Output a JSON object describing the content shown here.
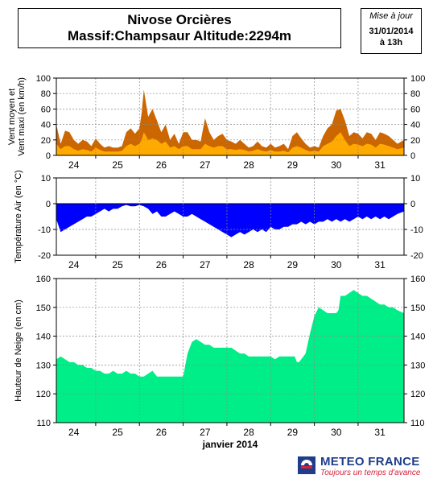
{
  "header": {
    "station_line": "Nivose Orcières",
    "massif_line": "Massif:Champsaur Altitude:2294m"
  },
  "update": {
    "label": "Mise à jour",
    "date": "31/01/2014",
    "time": "à 13h"
  },
  "logo": {
    "name": "METEO FRANCE",
    "tagline": "Toujours un temps d'avance"
  },
  "colors": {
    "wind_max": "#cc6600",
    "wind_mean": "#ffaa00",
    "temperature": "#0000ff",
    "snow": "#00ee88",
    "brand": "#1f3d8c",
    "brand_accent": "#d4213d"
  },
  "chart_data": [
    {
      "type": "area",
      "ylabel": "Vent moyen et\nVent maxi (en km/h)",
      "xlabel": "",
      "ylim": [
        0,
        100
      ],
      "yticks": [
        0,
        20,
        40,
        60,
        80,
        100
      ],
      "x_tick_labels": [
        "24",
        "25",
        "26",
        "27",
        "28",
        "29",
        "30",
        "31"
      ],
      "x_range_days": [
        23.6,
        31.55
      ],
      "grid": true,
      "series": [
        {
          "name": "Vent maxi",
          "x": [
            23.6,
            23.7,
            23.8,
            23.9,
            24.0,
            24.1,
            24.2,
            24.3,
            24.4,
            24.5,
            24.6,
            24.7,
            24.8,
            24.9,
            25.0,
            25.1,
            25.2,
            25.3,
            25.4,
            25.5,
            25.55,
            25.6,
            25.7,
            25.8,
            25.9,
            26.0,
            26.1,
            26.2,
            26.3,
            26.4,
            26.5,
            26.6,
            26.7,
            26.8,
            26.9,
            27.0,
            27.1,
            27.2,
            27.3,
            27.4,
            27.5,
            27.6,
            27.7,
            27.8,
            27.9,
            28.0,
            28.1,
            28.2,
            28.3,
            28.4,
            28.5,
            28.6,
            28.7,
            28.8,
            28.9,
            29.0,
            29.1,
            29.2,
            29.3,
            29.4,
            29.5,
            29.6,
            29.7,
            29.8,
            29.9,
            30.0,
            30.1,
            30.2,
            30.3,
            30.4,
            30.5,
            30.6,
            30.7,
            30.8,
            30.9,
            31.0,
            31.1,
            31.2,
            31.3,
            31.4,
            31.55
          ],
          "values": [
            40,
            15,
            32,
            30,
            20,
            15,
            20,
            18,
            12,
            22,
            15,
            10,
            12,
            10,
            10,
            12,
            30,
            35,
            28,
            35,
            55,
            85,
            50,
            60,
            45,
            30,
            40,
            20,
            28,
            15,
            30,
            30,
            20,
            20,
            18,
            48,
            30,
            20,
            25,
            28,
            20,
            18,
            15,
            20,
            15,
            10,
            12,
            18,
            12,
            10,
            15,
            10,
            12,
            15,
            8,
            25,
            30,
            22,
            15,
            10,
            12,
            10,
            25,
            35,
            40,
            58,
            60,
            45,
            25,
            30,
            28,
            22,
            30,
            28,
            20,
            30,
            28,
            25,
            20,
            15,
            20
          ]
        },
        {
          "name": "Vent moyen",
          "x": [
            23.6,
            23.7,
            23.8,
            23.9,
            24.0,
            24.1,
            24.2,
            24.3,
            24.4,
            24.5,
            24.6,
            24.7,
            24.8,
            24.9,
            25.0,
            25.1,
            25.2,
            25.3,
            25.4,
            25.5,
            25.55,
            25.6,
            25.7,
            25.8,
            25.9,
            26.0,
            26.1,
            26.2,
            26.3,
            26.4,
            26.5,
            26.6,
            26.7,
            26.8,
            26.9,
            27.0,
            27.1,
            27.2,
            27.3,
            27.4,
            27.5,
            27.6,
            27.7,
            27.8,
            27.9,
            28.0,
            28.1,
            28.2,
            28.3,
            28.4,
            28.5,
            28.6,
            28.7,
            28.8,
            28.9,
            29.0,
            29.1,
            29.2,
            29.3,
            29.4,
            29.5,
            29.6,
            29.7,
            29.8,
            29.9,
            30.0,
            30.1,
            30.2,
            30.3,
            30.4,
            30.5,
            30.6,
            30.7,
            30.8,
            30.9,
            31.0,
            31.1,
            31.2,
            31.3,
            31.4,
            31.55
          ],
          "values": [
            15,
            8,
            12,
            12,
            8,
            6,
            8,
            7,
            5,
            10,
            7,
            5,
            5,
            5,
            5,
            6,
            12,
            15,
            12,
            15,
            20,
            30,
            20,
            22,
            20,
            15,
            18,
            10,
            12,
            8,
            12,
            12,
            8,
            8,
            8,
            15,
            12,
            10,
            12,
            12,
            8,
            8,
            7,
            8,
            7,
            5,
            6,
            8,
            6,
            5,
            7,
            5,
            5,
            6,
            4,
            10,
            12,
            10,
            7,
            5,
            6,
            5,
            12,
            15,
            18,
            25,
            30,
            20,
            12,
            15,
            14,
            12,
            15,
            14,
            10,
            15,
            14,
            12,
            10,
            8,
            10
          ]
        }
      ]
    },
    {
      "type": "area",
      "ylabel": "Température Air (en °C)",
      "xlabel": "",
      "ylim": [
        -20,
        10
      ],
      "yticks": [
        -20,
        -10,
        0,
        10
      ],
      "x_tick_labels": [
        "24",
        "25",
        "26",
        "27",
        "28",
        "29",
        "30",
        "31"
      ],
      "x_range_days": [
        23.6,
        31.55
      ],
      "grid": true,
      "series": [
        {
          "name": "Température",
          "x": [
            23.6,
            23.7,
            23.8,
            23.9,
            24.0,
            24.1,
            24.2,
            24.3,
            24.4,
            24.5,
            24.6,
            24.7,
            24.8,
            24.9,
            25.0,
            25.1,
            25.2,
            25.3,
            25.4,
            25.5,
            25.6,
            25.7,
            25.8,
            25.9,
            26.0,
            26.1,
            26.2,
            26.3,
            26.4,
            26.5,
            26.6,
            26.7,
            26.8,
            26.9,
            27.0,
            27.1,
            27.2,
            27.3,
            27.4,
            27.5,
            27.6,
            27.7,
            27.8,
            27.9,
            28.0,
            28.1,
            28.2,
            28.3,
            28.4,
            28.5,
            28.6,
            28.7,
            28.8,
            28.9,
            29.0,
            29.1,
            29.2,
            29.3,
            29.4,
            29.5,
            29.6,
            29.7,
            29.8,
            29.9,
            30.0,
            30.1,
            30.2,
            30.3,
            30.4,
            30.5,
            30.6,
            30.7,
            30.8,
            30.9,
            31.0,
            31.1,
            31.2,
            31.3,
            31.4,
            31.55
          ],
          "values": [
            -6,
            -11,
            -10,
            -9,
            -8,
            -7,
            -6,
            -5,
            -5,
            -4,
            -3,
            -2,
            -3,
            -2,
            -2,
            -1,
            -0.5,
            -1,
            -1,
            -0.5,
            -1,
            -2,
            -4,
            -3,
            -5,
            -5,
            -4,
            -3,
            -4,
            -5,
            -5,
            -4,
            -5,
            -6,
            -7,
            -8,
            -9,
            -10,
            -11,
            -12,
            -13,
            -12,
            -11,
            -12,
            -11,
            -10,
            -11,
            -10,
            -11,
            -9,
            -10,
            -10,
            -9,
            -9,
            -8,
            -8,
            -7,
            -8,
            -7,
            -8,
            -7,
            -7,
            -6,
            -7,
            -6,
            -7,
            -6,
            -7,
            -6,
            -5,
            -6,
            -5,
            -6,
            -5,
            -6,
            -5,
            -6,
            -5,
            -4,
            -3
          ]
        }
      ]
    },
    {
      "type": "area",
      "ylabel": "Hauteur de Neige (en cm)",
      "xlabel": "janvier 2014",
      "ylim": [
        110,
        160
      ],
      "yticks": [
        110,
        120,
        130,
        140,
        150,
        160
      ],
      "x_tick_labels": [
        "24",
        "25",
        "26",
        "27",
        "28",
        "29",
        "30",
        "31"
      ],
      "x_range_days": [
        23.6,
        31.55
      ],
      "grid": true,
      "series": [
        {
          "name": "Hauteur de neige",
          "x": [
            23.6,
            23.7,
            23.8,
            23.9,
            24.0,
            24.1,
            24.2,
            24.3,
            24.4,
            24.5,
            24.6,
            24.7,
            24.8,
            24.9,
            25.0,
            25.1,
            25.2,
            25.3,
            25.4,
            25.5,
            25.6,
            25.7,
            25.8,
            25.9,
            26.0,
            26.1,
            26.2,
            26.3,
            26.4,
            26.5,
            26.6,
            26.7,
            26.8,
            26.9,
            27.0,
            27.1,
            27.2,
            27.3,
            27.4,
            27.5,
            27.6,
            27.7,
            27.8,
            27.9,
            28.0,
            28.1,
            28.2,
            28.3,
            28.4,
            28.5,
            28.6,
            28.7,
            28.8,
            28.9,
            29.0,
            29.05,
            29.1,
            29.15,
            29.2,
            29.3,
            29.4,
            29.5,
            29.6,
            29.7,
            29.8,
            29.9,
            30.0,
            30.05,
            30.1,
            30.2,
            30.3,
            30.4,
            30.5,
            30.6,
            30.7,
            30.8,
            30.9,
            31.0,
            31.1,
            31.2,
            31.3,
            31.4,
            31.55
          ],
          "values": [
            132,
            133,
            132,
            131,
            131,
            130,
            130,
            129,
            129,
            128,
            128,
            127,
            127,
            128,
            127,
            127,
            128,
            127,
            127,
            126,
            126,
            127,
            128,
            126,
            126,
            126,
            126,
            126,
            126,
            126,
            134,
            138,
            139,
            138,
            137,
            137,
            136,
            136,
            136,
            136,
            136,
            135,
            134,
            134,
            133,
            133,
            133,
            133,
            133,
            133,
            132,
            133,
            133,
            133,
            133,
            133,
            131,
            131,
            132,
            134,
            141,
            147,
            150,
            149,
            148,
            148,
            148,
            149,
            154,
            154,
            155,
            156,
            155,
            154,
            154,
            153,
            152,
            151,
            151,
            150,
            150,
            149,
            148
          ]
        }
      ]
    }
  ]
}
